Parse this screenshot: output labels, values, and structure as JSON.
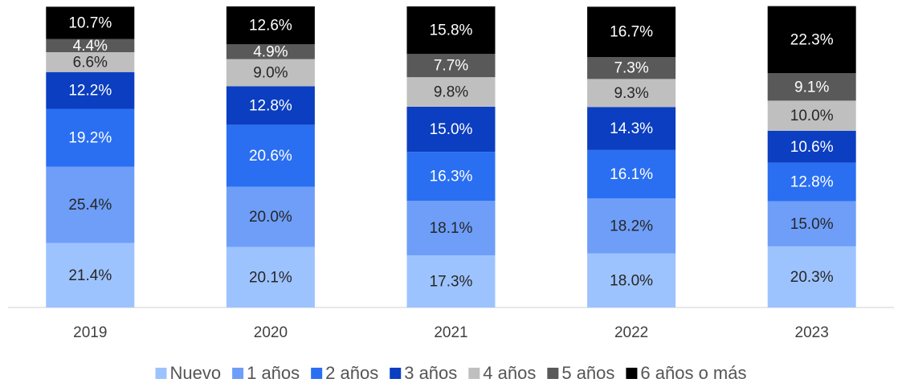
{
  "chart_data": {
    "type": "stacked_bar",
    "categories": [
      "2019",
      "2020",
      "2021",
      "2022",
      "2023"
    ],
    "series": [
      {
        "name": "Nuevo",
        "color": "#9dc3ff",
        "values": [
          21.4,
          20.1,
          17.3,
          18.0,
          20.3
        ],
        "value_labels": [
          "21.4%",
          "20.1%",
          "17.3%",
          "18.0%",
          "20.3%"
        ]
      },
      {
        "name": "1 años",
        "color": "#6e9ef8",
        "values": [
          25.4,
          20.0,
          18.1,
          18.2,
          15.0
        ],
        "value_labels": [
          "25.4%",
          "20.0%",
          "18.1%",
          "18.2%",
          "15.0%"
        ]
      },
      {
        "name": "2 años",
        "color": "#2a6ff2",
        "values": [
          19.2,
          20.6,
          16.3,
          16.1,
          12.8
        ],
        "value_labels": [
          "19.2%",
          "20.6%",
          "16.3%",
          "16.1%",
          "12.8%"
        ]
      },
      {
        "name": "3 años",
        "color": "#0b3ec0",
        "values": [
          12.2,
          12.8,
          15.0,
          14.3,
          10.6
        ],
        "value_labels": [
          "12.2%",
          "12.8%",
          "15.0%",
          "14.3%",
          "10.6%"
        ]
      },
      {
        "name": "4 años",
        "color": "#bfbfbf",
        "values": [
          6.6,
          9.0,
          9.8,
          9.3,
          10.0
        ],
        "value_labels": [
          "6.6%",
          "9.0%",
          "9.8%",
          "9.3%",
          "10.0%"
        ]
      },
      {
        "name": "5 años",
        "color": "#595959",
        "values": [
          4.4,
          4.9,
          7.7,
          7.3,
          9.1
        ],
        "value_labels": [
          "4.4%",
          "4.9%",
          "7.7%",
          "7.3%",
          "9.1%"
        ]
      },
      {
        "name": "6 años o más",
        "color": "#000000",
        "values": [
          10.7,
          12.6,
          15.8,
          16.7,
          22.3
        ],
        "value_labels": [
          "10.7%",
          "12.6%",
          "15.8%",
          "16.7%",
          "22.3%"
        ]
      }
    ]
  }
}
